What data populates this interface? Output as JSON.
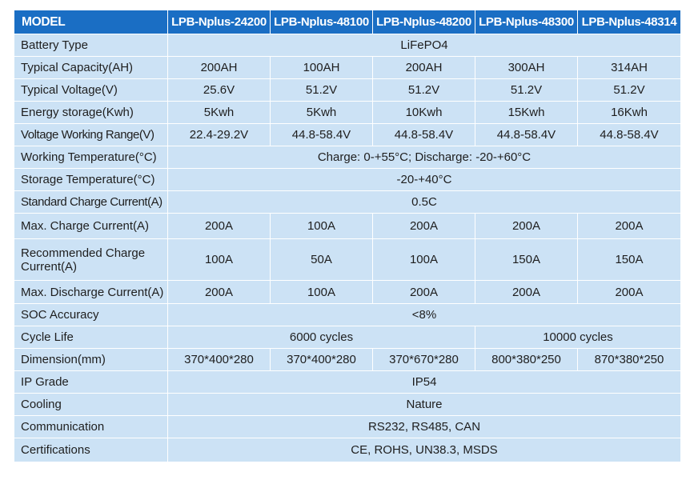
{
  "table": {
    "header_label": "MODEL",
    "models": [
      "LPB-Nplus-24200",
      "LPB-Nplus-48100",
      "LPB-Nplus-48200",
      "LPB-Nplus-48300",
      "LPB-Nplus-48314"
    ],
    "colors": {
      "header_bg": "#1a6ec4",
      "header_text": "#ffffff",
      "cell_bg": "#cce2f5",
      "cell_text": "#1e1e1e"
    },
    "rows": [
      {
        "label": "Battery Type",
        "cells": [
          "LiFePO4"
        ]
      },
      {
        "label": "Typical Capacity(AH)",
        "cells": [
          "200AH",
          "100AH",
          "200AH",
          "300AH",
          "314AH"
        ]
      },
      {
        "label": "Typical Voltage(V)",
        "cells": [
          "25.6V",
          "51.2V",
          "51.2V",
          "51.2V",
          "51.2V"
        ]
      },
      {
        "label": "Energy storage(Kwh)",
        "cells": [
          "5Kwh",
          "5Kwh",
          "10Kwh",
          "15Kwh",
          "16Kwh"
        ]
      },
      {
        "label": "Voltage Working Range(V)",
        "cells": [
          "22.4-29.2V",
          "44.8-58.4V",
          "44.8-58.4V",
          "44.8-58.4V",
          "44.8-58.4V"
        ]
      },
      {
        "label": "Working Temperature(°C)",
        "cells": [
          "Charge: 0-+55°C; Discharge: -20-+60°C"
        ]
      },
      {
        "label": "Storage Temperature(°C)",
        "cells": [
          "-20-+40°C"
        ]
      },
      {
        "label": "Standard Charge Current(A)",
        "cells": [
          "0.5C"
        ]
      },
      {
        "label": "Max. Charge Current(A)",
        "cells": [
          "200A",
          "100A",
          "200A",
          "200A",
          "200A"
        ]
      },
      {
        "label": "Recommended Charge Current(A)",
        "cells": [
          "100A",
          "50A",
          "100A",
          "150A",
          "150A"
        ]
      },
      {
        "label": "Max. Discharge Current(A)",
        "cells": [
          "200A",
          "100A",
          "200A",
          "200A",
          "200A"
        ]
      },
      {
        "label": "SOC Accuracy",
        "cells": [
          "<8%"
        ]
      },
      {
        "label": "Cycle Life",
        "cells": [
          "6000 cycles",
          "10000 cycles"
        ]
      },
      {
        "label": "Dimension(mm)",
        "cells": [
          "370*400*280",
          "370*400*280",
          "370*670*280",
          "800*380*250",
          "870*380*250"
        ]
      },
      {
        "label": "IP Grade",
        "cells": [
          "IP54"
        ]
      },
      {
        "label": "Cooling",
        "cells": [
          "Nature"
        ]
      },
      {
        "label": "Communication",
        "cells": [
          "RS232, RS485, CAN"
        ]
      },
      {
        "label": "Certifications",
        "cells": [
          "CE, ROHS, UN38.3, MSDS"
        ]
      }
    ]
  }
}
